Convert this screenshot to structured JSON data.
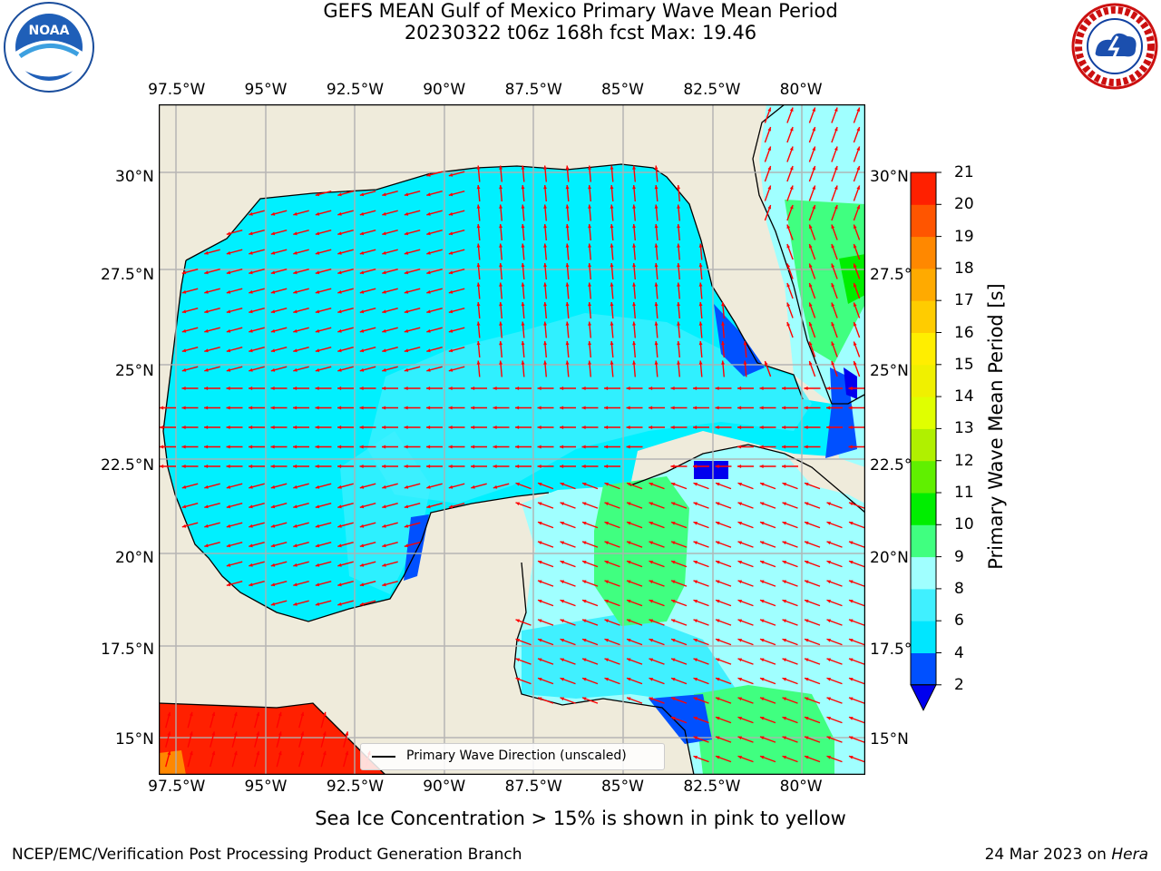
{
  "title": {
    "line1": "GEFS MEAN Gulf of Mexico Primary Wave Mean Period",
    "line2": "20230322 t06z 168h fcst   Max: 19.46"
  },
  "logos": {
    "left": {
      "name": "noaa-logo",
      "text": "NOAA",
      "ring_text": "NATIONAL OCEANIC AND ATMOSPHERIC ADMINISTRATION · U.S. DEPARTMENT OF COMMERCE"
    },
    "right": {
      "name": "nws-logo",
      "ring_text": "NATIONAL WEATHER SERVICE"
    }
  },
  "axes": {
    "lon_ticks": [
      "97.5°W",
      "95°W",
      "92.5°W",
      "90°W",
      "87.5°W",
      "85°W",
      "82.5°W",
      "80°W"
    ],
    "lon_values": [
      -97.5,
      -95,
      -92.5,
      -90,
      -87.5,
      -85,
      -82.5,
      -80
    ],
    "lat_ticks_left": [
      "30°N",
      "27.5°N",
      "25°N",
      "22.5°N",
      "20°N",
      "17.5°N",
      "15°N"
    ],
    "lat_ticks_right": [
      "30°N",
      "27.5°N",
      "25°N",
      "22.5°N",
      "20°N",
      "17.5°N",
      "15°N"
    ],
    "lat_values": [
      30,
      27.5,
      25,
      22.5,
      20,
      17.5,
      15
    ],
    "lon_range": [
      -98,
      -78.2
    ],
    "lat_range": [
      14,
      31.8
    ],
    "grid": true
  },
  "colorbar": {
    "label": "Primary Wave Mean Period [s]",
    "levels": [
      "2",
      "4",
      "6",
      "8",
      "9",
      "10",
      "11",
      "12",
      "13",
      "14",
      "15",
      "16",
      "17",
      "18",
      "19",
      "20",
      "21"
    ],
    "colors": [
      "#0050ff",
      "#00e6ff",
      "#40f0ff",
      "#a0ffff",
      "#40ff80",
      "#00ee00",
      "#60f000",
      "#b0f000",
      "#e0ff00",
      "#f0f000",
      "#ffee00",
      "#ffcc00",
      "#ffaa00",
      "#ff8800",
      "#ff5500",
      "#ff2000"
    ],
    "under_color": "#0000ee",
    "max_value": "19.46"
  },
  "map_colors": {
    "land": "#efebdb",
    "ocean_base": "#00f0ff",
    "arrow": "#ff0000",
    "coast": "#000000"
  },
  "legend": {
    "label": "Primary Wave Direction (unscaled)"
  },
  "footer": {
    "note": "Sea Ice Concentration > 15% is shown in pink to yellow",
    "left": "NCEP/EMC/Verification Post Processing Product Generation Branch",
    "right_prefix": "24 Mar 2023 on ",
    "right_host": "Hera"
  }
}
